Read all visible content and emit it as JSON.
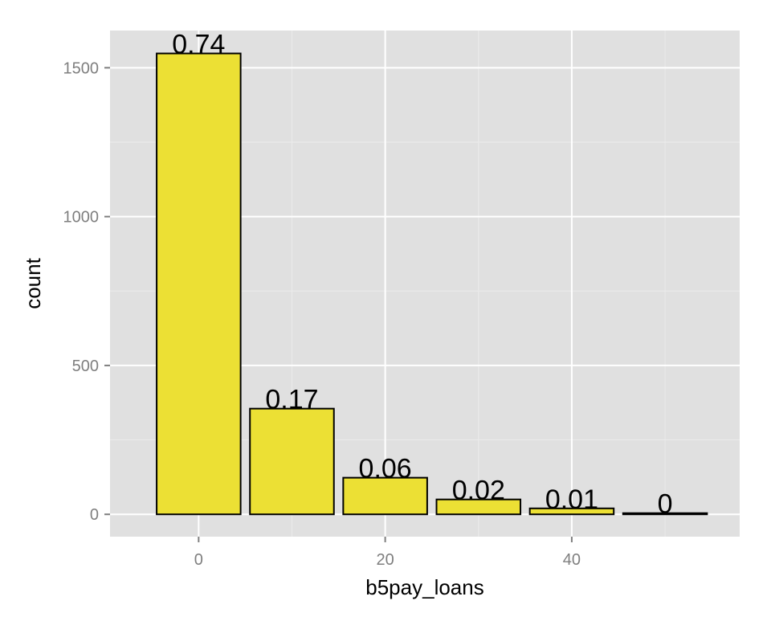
{
  "chart_data": {
    "type": "bar",
    "x": [
      0,
      10,
      20,
      30,
      40,
      50
    ],
    "values": [
      1548,
      355,
      123,
      50,
      20,
      4
    ],
    "data_labels": [
      "0.74",
      "0.17",
      "0.06",
      "0.02",
      "0.01",
      "0"
    ],
    "xlabel": "b5pay_loans",
    "ylabel": "count",
    "xlim": [
      -9.5,
      58
    ],
    "ylim": [
      -75,
      1625
    ],
    "x_ticks": [
      0,
      20,
      40
    ],
    "x_tick_labels": [
      "0",
      "20",
      "40"
    ],
    "y_ticks": [
      0,
      500,
      1000,
      1500
    ],
    "y_tick_labels": [
      "0",
      "500",
      "1000",
      "1500"
    ],
    "bar_width": 9,
    "grid": true,
    "legend": "none"
  },
  "colors": {
    "bar_fill": "#ECE034",
    "bar_stroke": "#000000",
    "panel_background": "#E0E0E0",
    "grid_major": "#FFFFFF",
    "grid_minor": "#EBEBEB",
    "tick_text": "#7F7F7F"
  }
}
